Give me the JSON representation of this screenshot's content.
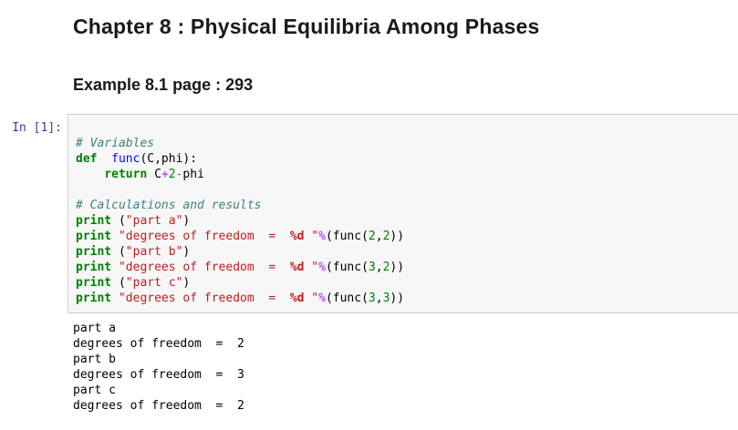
{
  "page": {
    "title": "Chapter 8 : Physical Equilibria Among Phases",
    "subtitle": "Example 8.1 page : 293"
  },
  "cell": {
    "prompt": "In [1]:",
    "code_lines": [
      [],
      [
        [
          "c",
          "# Variables"
        ]
      ],
      [
        [
          "k",
          "def"
        ],
        [
          "p",
          "  "
        ],
        [
          "fn",
          "func"
        ],
        [
          "p",
          "(C,phi):"
        ]
      ],
      [
        [
          "p",
          "    "
        ],
        [
          "k",
          "return"
        ],
        [
          "p",
          " C"
        ],
        [
          "o",
          "+"
        ],
        [
          "n",
          "2"
        ],
        [
          "o",
          "-"
        ],
        [
          "p",
          "phi"
        ]
      ],
      [],
      [
        [
          "c",
          "# Calculations and results"
        ]
      ],
      [
        [
          "k",
          "print"
        ],
        [
          "p",
          " ("
        ],
        [
          "s",
          "\"part a\""
        ],
        [
          "p",
          ")"
        ]
      ],
      [
        [
          "k",
          "print"
        ],
        [
          "p",
          " "
        ],
        [
          "s",
          "\"degrees of freedom  =  "
        ],
        [
          "f",
          "%d"
        ],
        [
          "s",
          " \""
        ],
        [
          "o",
          "%"
        ],
        [
          "p",
          "(func("
        ],
        [
          "n",
          "2"
        ],
        [
          "p",
          ","
        ],
        [
          "n",
          "2"
        ],
        [
          "p",
          "))"
        ]
      ],
      [
        [
          "k",
          "print"
        ],
        [
          "p",
          " ("
        ],
        [
          "s",
          "\"part b\""
        ],
        [
          "p",
          ")"
        ]
      ],
      [
        [
          "k",
          "print"
        ],
        [
          "p",
          " "
        ],
        [
          "s",
          "\"degrees of freedom  =  "
        ],
        [
          "f",
          "%d"
        ],
        [
          "s",
          " \""
        ],
        [
          "o",
          "%"
        ],
        [
          "p",
          "(func("
        ],
        [
          "n",
          "3"
        ],
        [
          "p",
          ","
        ],
        [
          "n",
          "2"
        ],
        [
          "p",
          "))"
        ]
      ],
      [
        [
          "k",
          "print"
        ],
        [
          "p",
          " ("
        ],
        [
          "s",
          "\"part c\""
        ],
        [
          "p",
          ")"
        ]
      ],
      [
        [
          "k",
          "print"
        ],
        [
          "p",
          " "
        ],
        [
          "s",
          "\"degrees of freedom  =  "
        ],
        [
          "f",
          "%d"
        ],
        [
          "s",
          " \""
        ],
        [
          "o",
          "%"
        ],
        [
          "p",
          "(func("
        ],
        [
          "n",
          "3"
        ],
        [
          "p",
          ","
        ],
        [
          "n",
          "3"
        ],
        [
          "p",
          "))"
        ]
      ]
    ],
    "output_lines": [
      "part a",
      "degrees of freedom  =  2",
      "part b",
      "degrees of freedom  =  3",
      "part c",
      "degrees of freedom  =  2"
    ]
  },
  "colors": {
    "kw": "#008000",
    "cm": "#408080",
    "st": "#BA2121",
    "op": "#AA22FF",
    "num": "#008000",
    "fn": "#0000FF",
    "prompt": "#303F9F",
    "cellbg": "#F7F7F7",
    "cellborder": "#CFCFCF"
  }
}
